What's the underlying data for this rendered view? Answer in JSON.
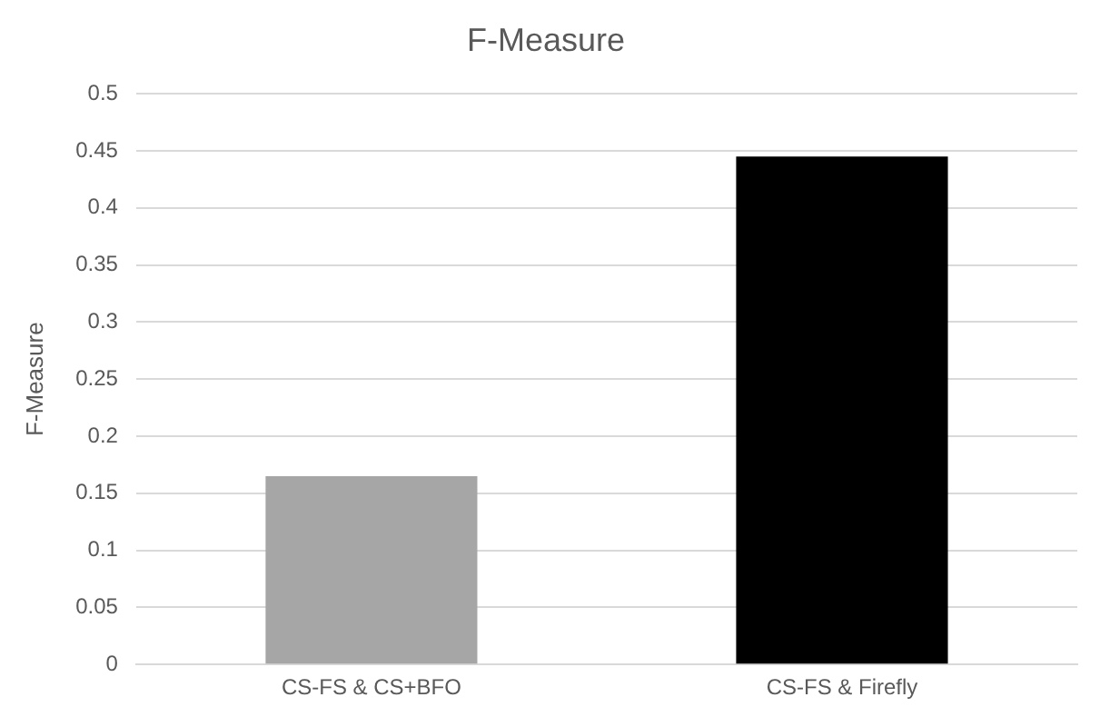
{
  "chart_data": {
    "type": "bar",
    "title": "F-Measure",
    "ylabel": "F-Measure",
    "categories": [
      "CS-FS & CS+BFO",
      "CS-FS & Firefly"
    ],
    "values": [
      0.165,
      0.445
    ],
    "colors": [
      "#a6a6a6",
      "#000000"
    ],
    "ylim": [
      0,
      0.5
    ],
    "yticks": [
      0,
      0.05,
      0.1,
      0.15,
      0.2,
      0.25,
      0.3,
      0.35,
      0.4,
      0.45,
      0.5
    ],
    "grid": "y",
    "legend": false
  }
}
